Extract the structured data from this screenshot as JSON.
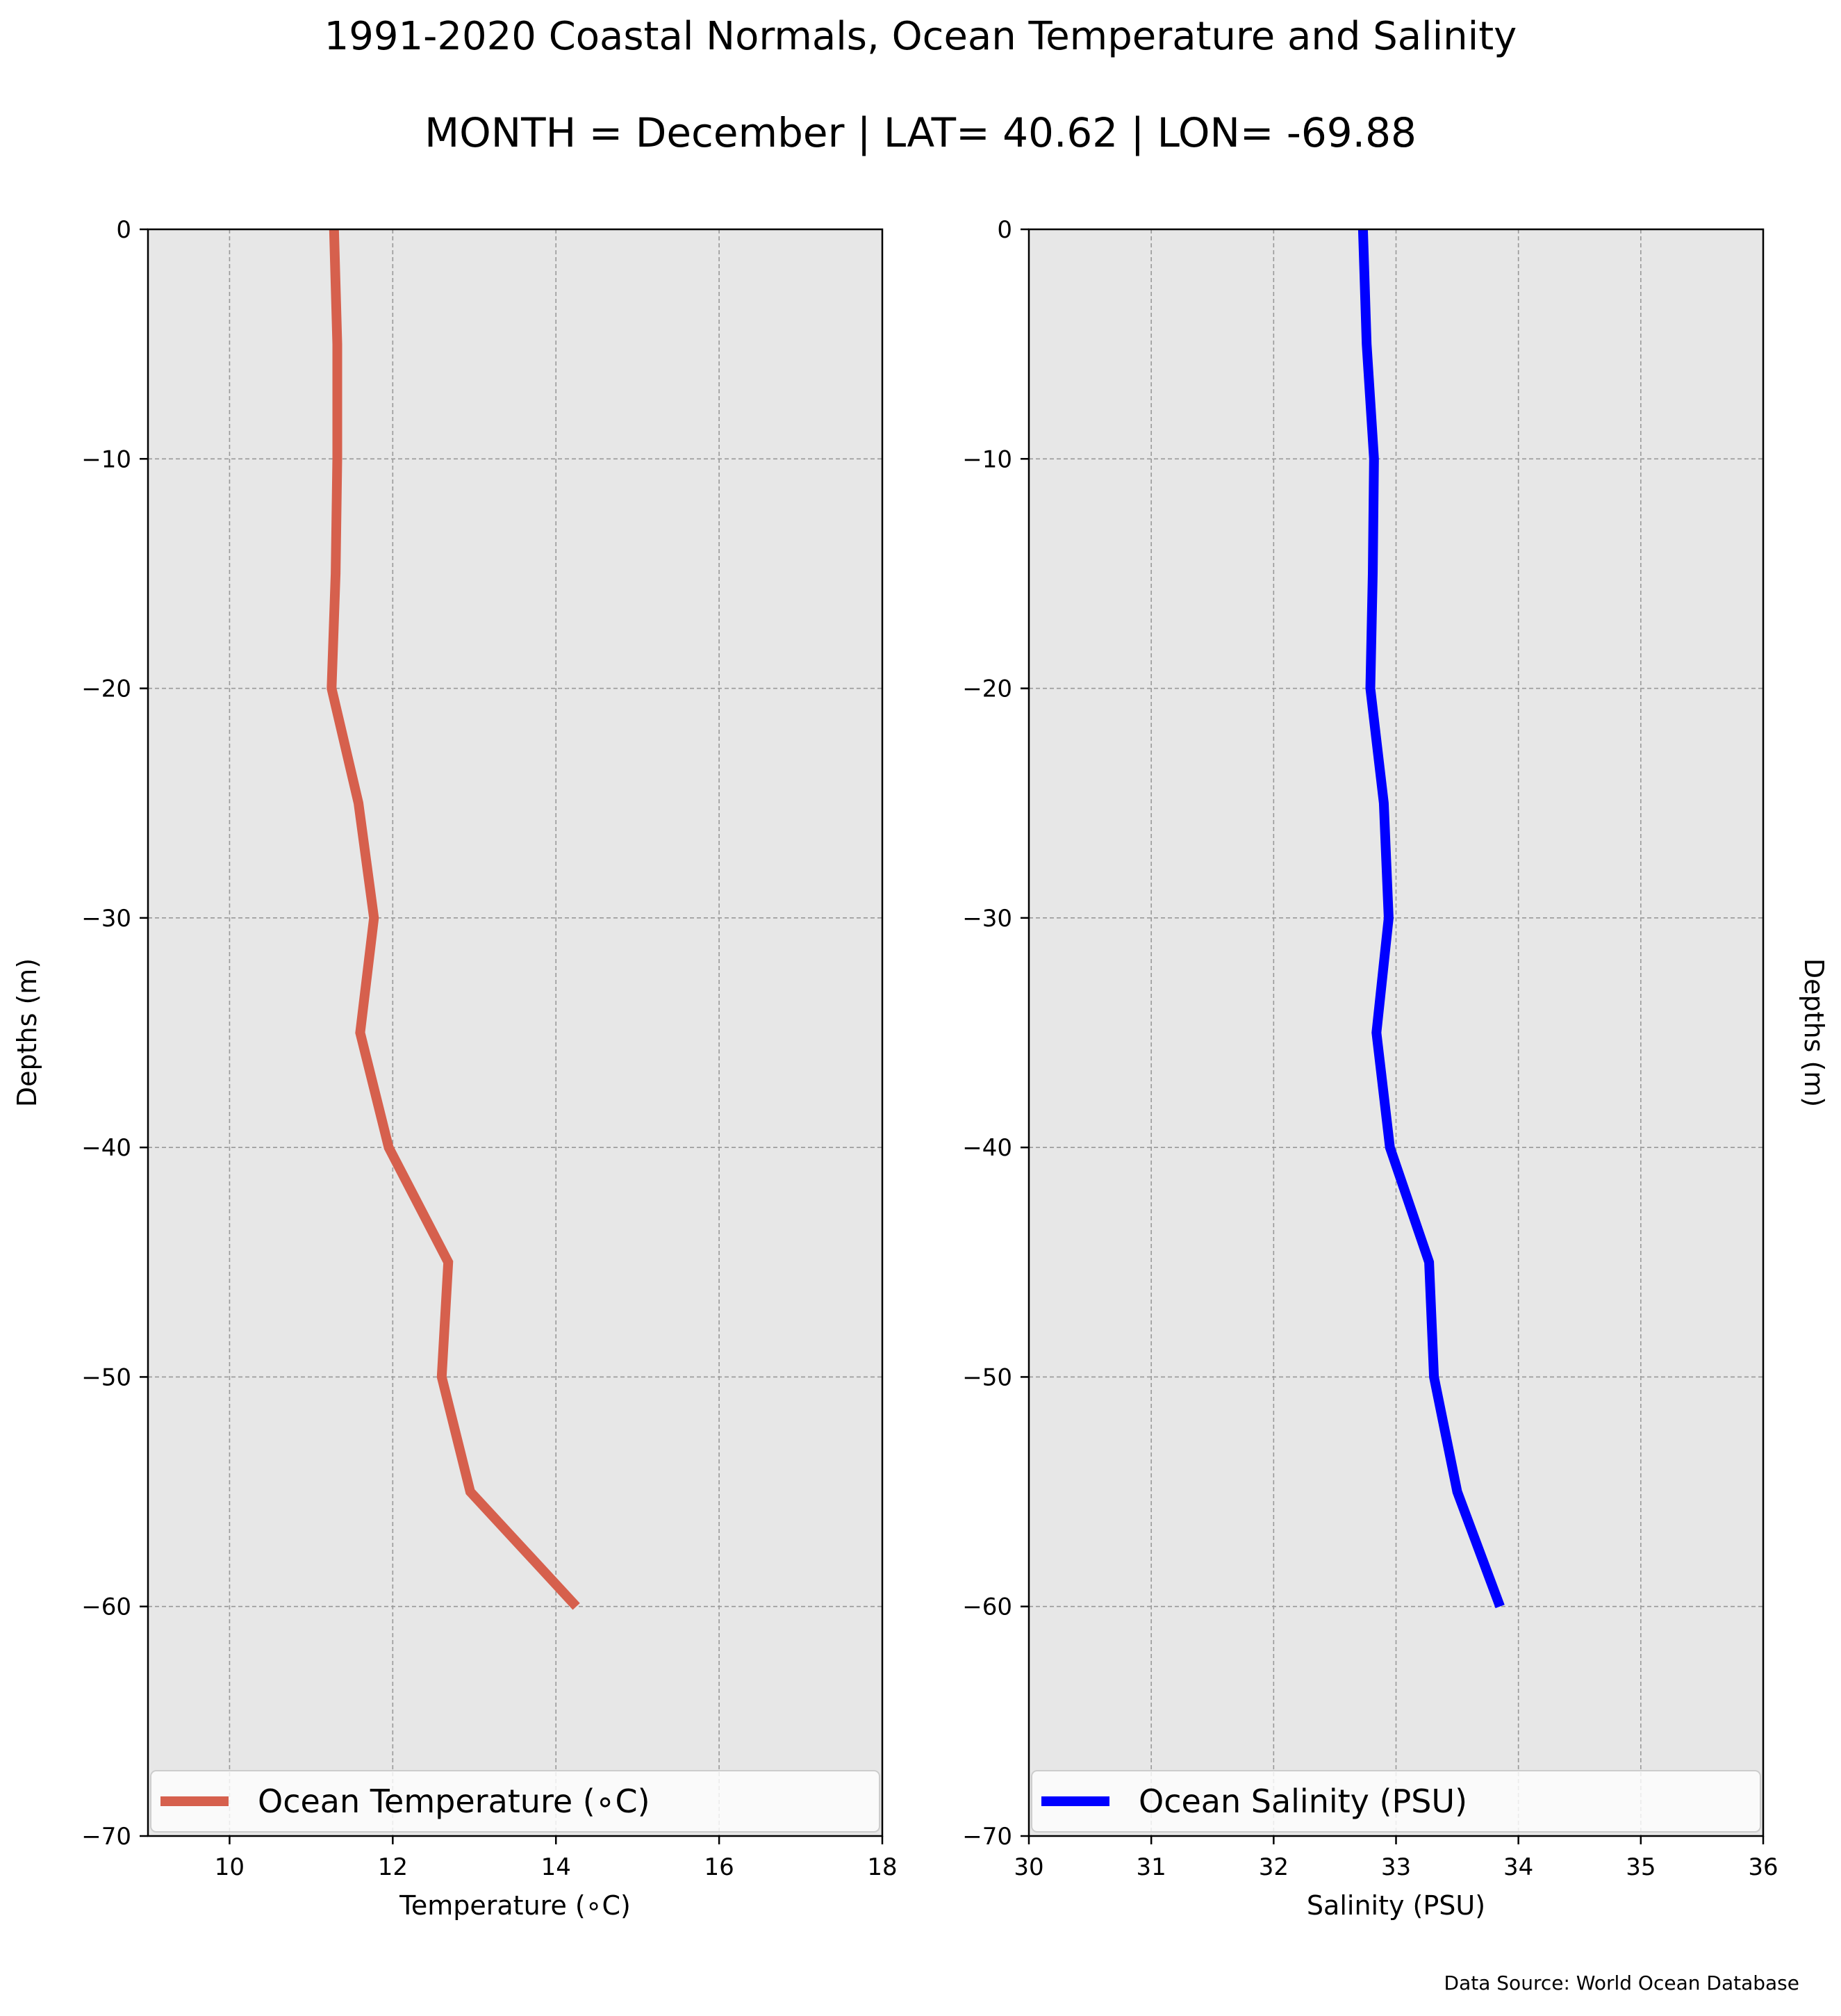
{
  "title": "1991-2020 Coastal Normals, Ocean Temperature and Salinity",
  "subtitle": "MONTH = December | LAT= 40.62 | LON= -69.88",
  "source": "Data Source: World Ocean Database",
  "chart_data": [
    {
      "type": "line",
      "xlabel": "Temperature ($^\\circ$C)",
      "xlabel_display": "Temperature (∘C)",
      "ylabel": "Depths (m)",
      "xlim": [
        9,
        18
      ],
      "ylim": [
        -70,
        0
      ],
      "xticks": [
        10,
        12,
        14,
        16,
        18
      ],
      "yticks": [
        0,
        -10,
        -20,
        -30,
        -40,
        -50,
        -60,
        -70
      ],
      "ytick_labels": [
        "0",
        "−10",
        "−20",
        "−30",
        "−40",
        "−50",
        "−60",
        "−70"
      ],
      "grid": true,
      "legend_position": "lower-center",
      "series": [
        {
          "name": "Ocean Temperature (∘C)",
          "color": "#d6604d",
          "points": [
            {
              "x": 11.28,
              "y": 0
            },
            {
              "x": 11.32,
              "y": -5
            },
            {
              "x": 11.32,
              "y": -10
            },
            {
              "x": 11.3,
              "y": -15
            },
            {
              "x": 11.25,
              "y": -20
            },
            {
              "x": 11.58,
              "y": -25
            },
            {
              "x": 11.77,
              "y": -30
            },
            {
              "x": 11.6,
              "y": -35
            },
            {
              "x": 11.95,
              "y": -40
            },
            {
              "x": 12.68,
              "y": -45
            },
            {
              "x": 12.6,
              "y": -50
            },
            {
              "x": 12.95,
              "y": -55
            },
            {
              "x": 14.25,
              "y": -60
            }
          ]
        }
      ]
    },
    {
      "type": "line",
      "xlabel": "Salinity (PSU)",
      "ylabel": "Depths (m)",
      "xlim": [
        30,
        36
      ],
      "ylim": [
        -70,
        0
      ],
      "xticks": [
        30,
        31,
        32,
        33,
        34,
        35,
        36
      ],
      "yticks": [
        0,
        -10,
        -20,
        -30,
        -40,
        -50,
        -60,
        -70
      ],
      "ytick_labels": [
        "0",
        "−10",
        "−20",
        "−30",
        "−40",
        "−50",
        "−60",
        "−70"
      ],
      "grid": true,
      "legend_position": "lower-center",
      "series": [
        {
          "name": "Ocean Salinity (PSU)",
          "color": "#0000ff",
          "points": [
            {
              "x": 32.73,
              "y": 0
            },
            {
              "x": 32.76,
              "y": -5
            },
            {
              "x": 32.82,
              "y": -10
            },
            {
              "x": 32.81,
              "y": -15
            },
            {
              "x": 32.79,
              "y": -20
            },
            {
              "x": 32.9,
              "y": -25
            },
            {
              "x": 32.94,
              "y": -30
            },
            {
              "x": 32.84,
              "y": -35
            },
            {
              "x": 32.95,
              "y": -40
            },
            {
              "x": 33.27,
              "y": -45
            },
            {
              "x": 33.31,
              "y": -50
            },
            {
              "x": 33.5,
              "y": -55
            },
            {
              "x": 33.85,
              "y": -60
            }
          ]
        }
      ]
    }
  ]
}
